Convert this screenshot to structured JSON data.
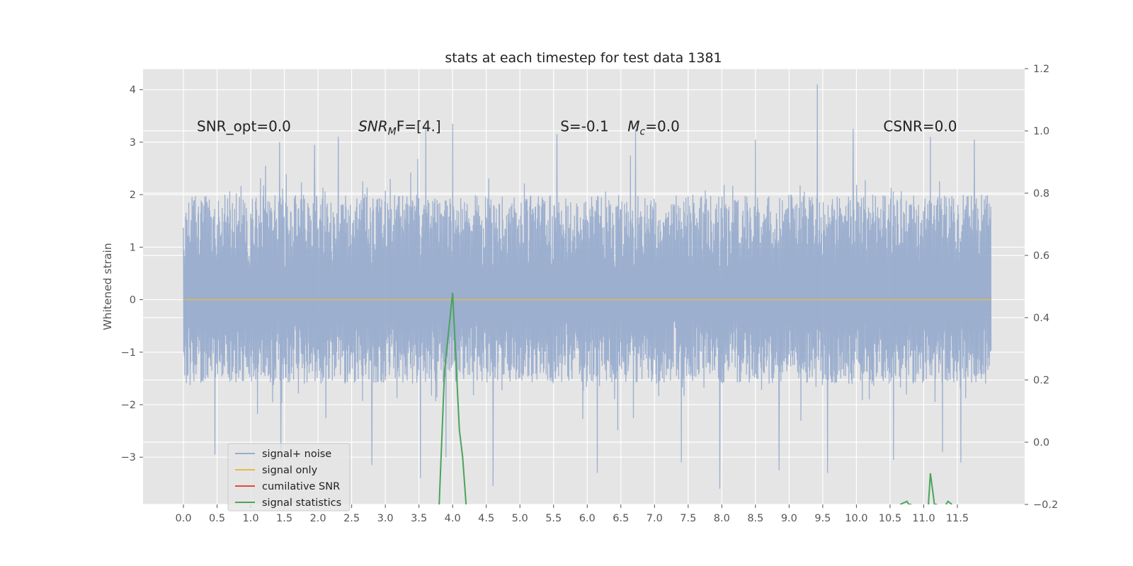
{
  "chart_data": {
    "type": "line",
    "title": "stats at each timestep for test data 1381",
    "xlabel": "",
    "ylabel": "Whitened strain",
    "xlim": [
      -0.6,
      12.5
    ],
    "ylim": [
      -3.9,
      4.4
    ],
    "y2lim": [
      -0.2,
      1.2
    ],
    "x_ticks": [
      0.0,
      0.5,
      1.0,
      1.5,
      2.0,
      2.5,
      3.0,
      3.5,
      4.0,
      4.5,
      5.0,
      5.5,
      6.0,
      6.5,
      7.0,
      7.5,
      8.0,
      8.5,
      9.0,
      9.5,
      10.0,
      10.5,
      11.0,
      11.5
    ],
    "x_tick_labels": [
      "0.0",
      "0.5",
      "1.0",
      "1.5",
      "2.0",
      "2.5",
      "3.0",
      "3.5",
      "4.0",
      "4.5",
      "5.0",
      "5.5",
      "6.0",
      "6.5",
      "7.0",
      "7.5",
      "8.0",
      "8.5",
      "9.0",
      "9.5",
      "10.0",
      "10.5",
      "11.0",
      "11.5"
    ],
    "y_ticks": [
      4,
      3,
      2,
      1,
      0,
      -1,
      -2,
      -3
    ],
    "y_tick_labels": [
      "4",
      "3",
      "2",
      "1",
      "0",
      "−1",
      "−2",
      "−3"
    ],
    "y2_ticks": [
      1.2,
      1.0,
      0.8,
      0.6,
      0.4,
      0.2,
      0.0,
      -0.2
    ],
    "y2_tick_labels": [
      "1.2",
      "1.0",
      "0.8",
      "0.6",
      "0.4",
      "0.2",
      "0.0",
      "−0.2"
    ],
    "grid": true,
    "style": "ggplot",
    "legend_position": "lower-left",
    "annotations": [
      {
        "text": "SNR_opt=0.0",
        "x": 0.2,
        "y": 3.3
      },
      {
        "text": "SNR_MF=[4.]",
        "x": 2.6,
        "y": 3.3
      },
      {
        "text": "S=-0.1",
        "x": 5.6,
        "y": 3.3
      },
      {
        "text": "M_c=0.0",
        "x": 6.6,
        "y": 3.3
      },
      {
        "text": "CSNR=0.0",
        "x": 10.4,
        "y": 3.3
      }
    ],
    "series": [
      {
        "name": "signal+ noise",
        "color": "#98acce",
        "axis": "left",
        "x_range": [
          0.0,
          12.0
        ],
        "typical_range": [
          -1.6,
          2.0
        ],
        "envelope_upper_x": [
          0.0,
          0.5,
          1.0,
          1.5,
          2.0,
          2.5,
          3.0,
          3.5,
          4.0,
          4.5,
          5.0,
          5.5,
          6.0,
          6.5,
          7.0,
          7.5,
          8.0,
          8.5,
          9.0,
          9.5,
          10.0,
          10.5,
          11.0,
          11.5,
          12.0
        ],
        "envelope_upper": [
          2.3,
          2.4,
          2.6,
          3.0,
          2.9,
          2.7,
          2.6,
          3.2,
          3.3,
          2.9,
          2.8,
          3.1,
          2.8,
          3.2,
          3.0,
          2.9,
          2.9,
          2.8,
          3.0,
          4.1,
          3.2,
          3.1,
          3.1,
          3.0,
          2.9
        ],
        "envelope_lower": [
          -2.7,
          -3.0,
          -2.8,
          -3.0,
          -2.8,
          -2.9,
          -3.1,
          -3.4,
          -3.0,
          -3.5,
          -3.2,
          -2.7,
          -2.8,
          -3.2,
          -3.0,
          -3.3,
          -3.2,
          -3.3,
          -3.0,
          -3.2,
          -3.3,
          -3.0,
          -2.9,
          -3.3,
          -2.9
        ],
        "spikes": [
          {
            "x": 0.47,
            "y": -2.95
          },
          {
            "x": 1.22,
            "y": 2.55
          },
          {
            "x": 1.45,
            "y": -3.05
          },
          {
            "x": 1.43,
            "y": 3.0
          },
          {
            "x": 1.95,
            "y": 2.95
          },
          {
            "x": 2.3,
            "y": 3.1
          },
          {
            "x": 2.8,
            "y": -3.15
          },
          {
            "x": 3.52,
            "y": -3.4
          },
          {
            "x": 3.6,
            "y": 3.3
          },
          {
            "x": 3.9,
            "y": -3.0
          },
          {
            "x": 4.0,
            "y": 3.35
          },
          {
            "x": 4.6,
            "y": -3.55
          },
          {
            "x": 5.55,
            "y": 3.15
          },
          {
            "x": 6.15,
            "y": -3.3
          },
          {
            "x": 6.72,
            "y": 3.25
          },
          {
            "x": 7.4,
            "y": -3.1
          },
          {
            "x": 7.97,
            "y": -3.6
          },
          {
            "x": 8.5,
            "y": 3.05
          },
          {
            "x": 8.85,
            "y": -3.25
          },
          {
            "x": 9.42,
            "y": 4.1
          },
          {
            "x": 9.57,
            "y": -3.3
          },
          {
            "x": 9.95,
            "y": 3.25
          },
          {
            "x": 10.55,
            "y": -3.05
          },
          {
            "x": 11.1,
            "y": 3.1
          },
          {
            "x": 11.28,
            "y": -2.9
          },
          {
            "x": 11.75,
            "y": 3.05
          },
          {
            "x": 11.55,
            "y": -3.1
          }
        ]
      },
      {
        "name": "signal only",
        "color": "#e8b84b",
        "axis": "left",
        "x": [
          0.0,
          12.0
        ],
        "y": [
          0.0,
          0.0
        ]
      },
      {
        "name": "cumilative SNR",
        "color": "#e24a33",
        "axis": "right",
        "x": [],
        "y": []
      },
      {
        "name": "signal statistics",
        "color": "#4aa45a",
        "axis": "right",
        "segments": [
          {
            "x": [
              3.8,
              3.88,
              4.0,
              4.1,
              4.15,
              4.2
            ],
            "y": [
              -0.2,
              0.23,
              0.48,
              0.04,
              -0.05,
              -0.2
            ]
          },
          {
            "x": [
              10.65,
              10.75,
              10.78,
              10.82
            ],
            "y": [
              -0.2,
              -0.19,
              -0.2,
              -0.2
            ]
          },
          {
            "x": [
              11.07,
              11.1,
              11.16,
              11.2
            ],
            "y": [
              -0.2,
              -0.1,
              -0.2,
              -0.2
            ]
          },
          {
            "x": [
              11.33,
              11.36,
              11.42
            ],
            "y": [
              -0.2,
              -0.19,
              -0.2
            ]
          }
        ]
      }
    ]
  }
}
